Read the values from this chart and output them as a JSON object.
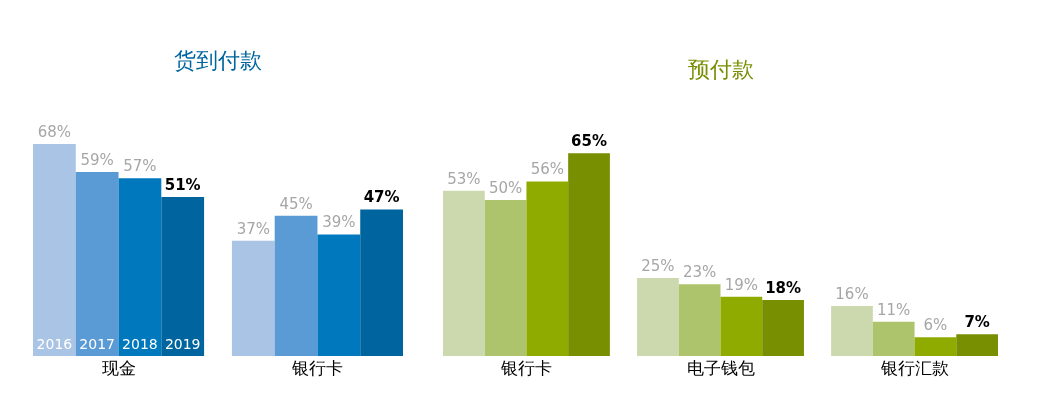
{
  "chart_data": [
    {
      "type": "bar",
      "title": "货到付款",
      "categories": [
        "现金",
        "银行卡"
      ],
      "legend": false,
      "series": [
        {
          "name": "2016",
          "color": "#a9c4e4",
          "values": [
            68,
            37
          ],
          "value_labels": [
            "68%",
            "37%"
          ]
        },
        {
          "name": "2017",
          "color": "#5b9bd5",
          "values": [
            59,
            45
          ],
          "value_labels": [
            "59%",
            "45%"
          ]
        },
        {
          "name": "2018",
          "color": "#0078bd",
          "values": [
            57,
            39
          ],
          "value_labels": [
            "57%",
            "39%"
          ]
        },
        {
          "name": "2019",
          "color": "#00659f",
          "values": [
            51,
            47
          ],
          "value_labels": [
            "51%",
            "47%"
          ]
        }
      ]
    },
    {
      "type": "bar",
      "title": "预付款",
      "categories": [
        "银行卡",
        "电子钱包",
        "银行汇款"
      ],
      "legend": false,
      "series": [
        {
          "color": "#ccd9ae",
          "values": [
            53,
            25,
            16
          ],
          "value_labels": [
            "53%",
            "25%",
            "16%"
          ]
        },
        {
          "color": "#adc46c",
          "values": [
            50,
            23,
            11
          ],
          "value_labels": [
            "50%",
            "23%",
            "11%"
          ]
        },
        {
          "color": "#8fab00",
          "values": [
            56,
            19,
            6
          ],
          "value_labels": [
            "56%",
            "19%",
            "6%"
          ]
        },
        {
          "color": "#778f00",
          "values": [
            65,
            18,
            7
          ],
          "value_labels": [
            "65%",
            "18%",
            "7%"
          ]
        }
      ]
    }
  ]
}
